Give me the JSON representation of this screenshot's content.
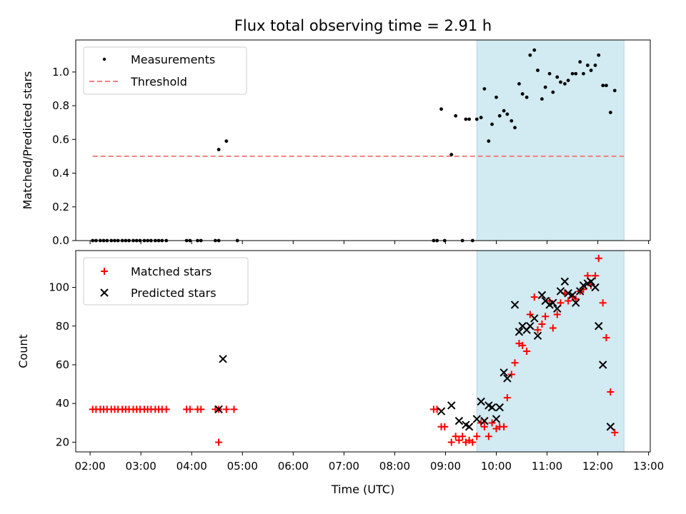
{
  "title": "Flux total observing time = 2.91 h",
  "colors": {
    "measurement": "#000000",
    "threshold": "#f08080",
    "matched": "#ff0000",
    "predicted": "#000000",
    "highlight": "#add8e6"
  },
  "chart_data": [
    {
      "type": "scatter",
      "ylabel": "Matched/Predicted stars",
      "xlabel": "",
      "xlim": [
        "01:43",
        "13:02"
      ],
      "ylim": [
        0,
        1.19
      ],
      "yticks": [
        "0.0",
        "0.2",
        "0.4",
        "0.6",
        "0.8",
        "1.0"
      ],
      "grid": false,
      "legend": "upper-left",
      "highlight_span": [
        "09:37",
        "12:31"
      ],
      "threshold": {
        "name": "Threshold",
        "value": 0.5,
        "x": [
          "02:03",
          "12:31"
        ]
      },
      "series": [
        {
          "name": "Measurements",
          "points": [
            [
              "02:03",
              0
            ],
            [
              "02:07",
              0
            ],
            [
              "02:12",
              0
            ],
            [
              "02:16",
              0
            ],
            [
              "02:20",
              0
            ],
            [
              "02:25",
              0
            ],
            [
              "02:29",
              0
            ],
            [
              "02:33",
              0
            ],
            [
              "02:38",
              0
            ],
            [
              "02:42",
              0
            ],
            [
              "02:46",
              0
            ],
            [
              "02:51",
              0
            ],
            [
              "02:55",
              0
            ],
            [
              "02:59",
              0
            ],
            [
              "03:04",
              0
            ],
            [
              "03:08",
              0
            ],
            [
              "03:12",
              0
            ],
            [
              "03:17",
              0
            ],
            [
              "03:21",
              0
            ],
            [
              "03:25",
              0
            ],
            [
              "03:30",
              0
            ],
            [
              "03:54",
              0
            ],
            [
              "03:58",
              0
            ],
            [
              "04:07",
              0
            ],
            [
              "04:11",
              0
            ],
            [
              "04:28",
              0
            ],
            [
              "04:32",
              0
            ],
            [
              "04:54",
              0
            ],
            [
              "04:32",
              0.54
            ],
            [
              "04:41",
              0.59
            ],
            [
              "08:46",
              0
            ],
            [
              "08:50",
              0
            ],
            [
              "08:59",
              0
            ],
            [
              "09:20",
              0
            ],
            [
              "09:32",
              0
            ],
            [
              "08:55",
              0.78
            ],
            [
              "09:07",
              0.51
            ],
            [
              "09:12",
              0.74
            ],
            [
              "09:24",
              0.72
            ],
            [
              "09:28",
              0.72
            ],
            [
              "09:37",
              0.72
            ],
            [
              "09:42",
              0.73
            ],
            [
              "09:46",
              0.9
            ],
            [
              "09:51",
              0.59
            ],
            [
              "09:55",
              0.69
            ],
            [
              "10:00",
              0.85
            ],
            [
              "10:04",
              0.74
            ],
            [
              "10:09",
              0.77
            ],
            [
              "10:13",
              0.75
            ],
            [
              "10:18",
              0.71
            ],
            [
              "10:22",
              0.67
            ],
            [
              "10:27",
              0.93
            ],
            [
              "10:31",
              0.87
            ],
            [
              "10:36",
              0.85
            ],
            [
              "10:40",
              1.1
            ],
            [
              "10:45",
              1.13
            ],
            [
              "10:49",
              1.01
            ],
            [
              "10:54",
              0.84
            ],
            [
              "10:58",
              0.91
            ],
            [
              "11:03",
              0.99
            ],
            [
              "11:07",
              0.88
            ],
            [
              "11:12",
              0.97
            ],
            [
              "11:16",
              0.94
            ],
            [
              "11:21",
              0.93
            ],
            [
              "11:25",
              0.95
            ],
            [
              "11:30",
              0.99
            ],
            [
              "11:34",
              0.99
            ],
            [
              "11:39",
              1.06
            ],
            [
              "11:43",
              0.99
            ],
            [
              "11:48",
              1.04
            ],
            [
              "11:52",
              1.01
            ],
            [
              "11:57",
              1.04
            ],
            [
              "12:01",
              1.1
            ],
            [
              "12:06",
              0.92
            ],
            [
              "12:10",
              0.92
            ],
            [
              "12:15",
              0.76
            ],
            [
              "12:20",
              0.89
            ]
          ]
        }
      ]
    },
    {
      "type": "scatter",
      "ylabel": "Count",
      "xlabel": "Time (UTC)",
      "xlim": [
        "01:43",
        "13:02"
      ],
      "ylim": [
        15,
        119
      ],
      "yticks": [
        "20",
        "40",
        "60",
        "80",
        "100"
      ],
      "xticks": [
        "02:00",
        "03:00",
        "04:00",
        "05:00",
        "06:00",
        "07:00",
        "08:00",
        "09:00",
        "10:00",
        "11:00",
        "12:00",
        "13:00"
      ],
      "grid": false,
      "legend": "upper-left",
      "highlight_span": [
        "09:37",
        "12:31"
      ],
      "series": [
        {
          "name": "Matched stars",
          "marker": "plus",
          "points": [
            [
              "02:03",
              37
            ],
            [
              "02:07",
              37
            ],
            [
              "02:12",
              37
            ],
            [
              "02:16",
              37
            ],
            [
              "02:20",
              37
            ],
            [
              "02:25",
              37
            ],
            [
              "02:29",
              37
            ],
            [
              "02:33",
              37
            ],
            [
              "02:38",
              37
            ],
            [
              "02:42",
              37
            ],
            [
              "02:46",
              37
            ],
            [
              "02:51",
              37
            ],
            [
              "02:55",
              37
            ],
            [
              "02:59",
              37
            ],
            [
              "03:04",
              37
            ],
            [
              "03:08",
              37
            ],
            [
              "03:12",
              37
            ],
            [
              "03:17",
              37
            ],
            [
              "03:21",
              37
            ],
            [
              "03:25",
              37
            ],
            [
              "03:30",
              37
            ],
            [
              "03:54",
              37
            ],
            [
              "03:58",
              37
            ],
            [
              "04:07",
              37
            ],
            [
              "04:11",
              37
            ],
            [
              "04:28",
              37
            ],
            [
              "04:32",
              37
            ],
            [
              "04:32",
              20
            ],
            [
              "04:41",
              37
            ],
            [
              "04:50",
              37
            ],
            [
              "08:46",
              37
            ],
            [
              "08:50",
              37
            ],
            [
              "08:55",
              28
            ],
            [
              "08:59",
              28
            ],
            [
              "09:07",
              20
            ],
            [
              "09:12",
              23
            ],
            [
              "09:16",
              21
            ],
            [
              "09:20",
              23
            ],
            [
              "09:24",
              20
            ],
            [
              "09:28",
              21
            ],
            [
              "09:32",
              20
            ],
            [
              "09:37",
              23
            ],
            [
              "09:42",
              30
            ],
            [
              "09:46",
              28
            ],
            [
              "09:51",
              23
            ],
            [
              "09:55",
              30
            ],
            [
              "10:00",
              27
            ],
            [
              "10:04",
              28
            ],
            [
              "10:09",
              28
            ],
            [
              "10:13",
              43
            ],
            [
              "10:18",
              55
            ],
            [
              "10:22",
              61
            ],
            [
              "10:27",
              71
            ],
            [
              "10:31",
              70
            ],
            [
              "10:36",
              67
            ],
            [
              "10:40",
              86
            ],
            [
              "10:45",
              95
            ],
            [
              "10:49",
              78
            ],
            [
              "10:54",
              81
            ],
            [
              "10:58",
              85
            ],
            [
              "11:03",
              93
            ],
            [
              "11:07",
              79
            ],
            [
              "11:12",
              86
            ],
            [
              "11:16",
              92
            ],
            [
              "11:21",
              97
            ],
            [
              "11:25",
              93
            ],
            [
              "11:30",
              95
            ],
            [
              "11:34",
              94
            ],
            [
              "11:39",
              98
            ],
            [
              "11:43",
              99
            ],
            [
              "11:48",
              106
            ],
            [
              "11:52",
              101
            ],
            [
              "11:57",
              106
            ],
            [
              "12:01",
              115
            ],
            [
              "12:06",
              92
            ],
            [
              "12:10",
              74
            ],
            [
              "12:15",
              46
            ],
            [
              "12:20",
              25
            ]
          ]
        },
        {
          "name": "Predicted stars",
          "marker": "x",
          "points": [
            [
              "04:32",
              37
            ],
            [
              "04:37",
              63
            ],
            [
              "08:55",
              36
            ],
            [
              "09:07",
              39
            ],
            [
              "09:16",
              31
            ],
            [
              "09:24",
              29
            ],
            [
              "09:28",
              28
            ],
            [
              "09:37",
              32
            ],
            [
              "09:42",
              41
            ],
            [
              "09:46",
              31
            ],
            [
              "09:51",
              39
            ],
            [
              "09:55",
              38
            ],
            [
              "10:00",
              32
            ],
            [
              "10:04",
              38
            ],
            [
              "10:09",
              56
            ],
            [
              "10:13",
              53
            ],
            [
              "10:22",
              91
            ],
            [
              "10:27",
              77
            ],
            [
              "10:31",
              80
            ],
            [
              "10:36",
              78
            ],
            [
              "10:40",
              80
            ],
            [
              "10:45",
              84
            ],
            [
              "10:49",
              75
            ],
            [
              "10:54",
              96
            ],
            [
              "10:58",
              93
            ],
            [
              "11:03",
              91
            ],
            [
              "11:07",
              92
            ],
            [
              "11:12",
              89
            ],
            [
              "11:16",
              98
            ],
            [
              "11:21",
              103
            ],
            [
              "11:25",
              97
            ],
            [
              "11:30",
              96
            ],
            [
              "11:34",
              92
            ],
            [
              "11:39",
              98
            ],
            [
              "11:43",
              101
            ],
            [
              "11:48",
              102
            ],
            [
              "11:52",
              103
            ],
            [
              "11:57",
              100
            ],
            [
              "12:01",
              80
            ],
            [
              "12:06",
              60
            ],
            [
              "12:15",
              28
            ]
          ]
        }
      ]
    }
  ]
}
